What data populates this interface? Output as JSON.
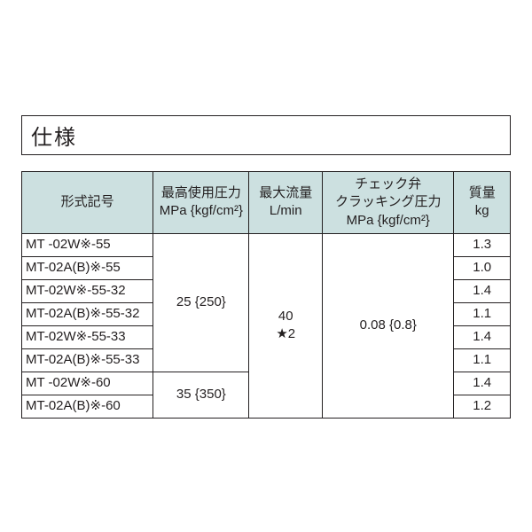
{
  "title": "仕様",
  "columns": {
    "model": "形式記号",
    "pressure_l1": "最高使用圧力",
    "pressure_l2": "MPa {kgf/cm²}",
    "flow_l1": "最大流量",
    "flow_l2": "L/min",
    "crack_l1": "チェック弁",
    "crack_l2": "クラッキング圧力",
    "crack_l3": "MPa {kgf/cm²}",
    "mass_l1": "質量",
    "mass_l2": "kg"
  },
  "models": [
    "MT -02W※-55",
    "MT-02A(B)※-55",
    "MT-02W※-55-32",
    "MT-02A(B)※-55-32",
    "MT-02W※-55-33",
    "MT-02A(B)※-55-33",
    "MT -02W※-60",
    "MT-02A(B)※-60"
  ],
  "mass": [
    "1.3",
    "1.0",
    "1.4",
    "1.1",
    "1.4",
    "1.1",
    "1.4",
    "1.2"
  ],
  "pressure_group1": "25 {250}",
  "pressure_group2": "35 {350}",
  "flow_l1v": "40",
  "flow_l2v": "★2",
  "crack_value": "0.08 {0.8}",
  "colors": {
    "header_bg": "#cce0e0",
    "border": "#231f20",
    "text": "#231f20",
    "background": "#ffffff"
  },
  "font_sizes": {
    "title": 24,
    "cell": 15
  }
}
